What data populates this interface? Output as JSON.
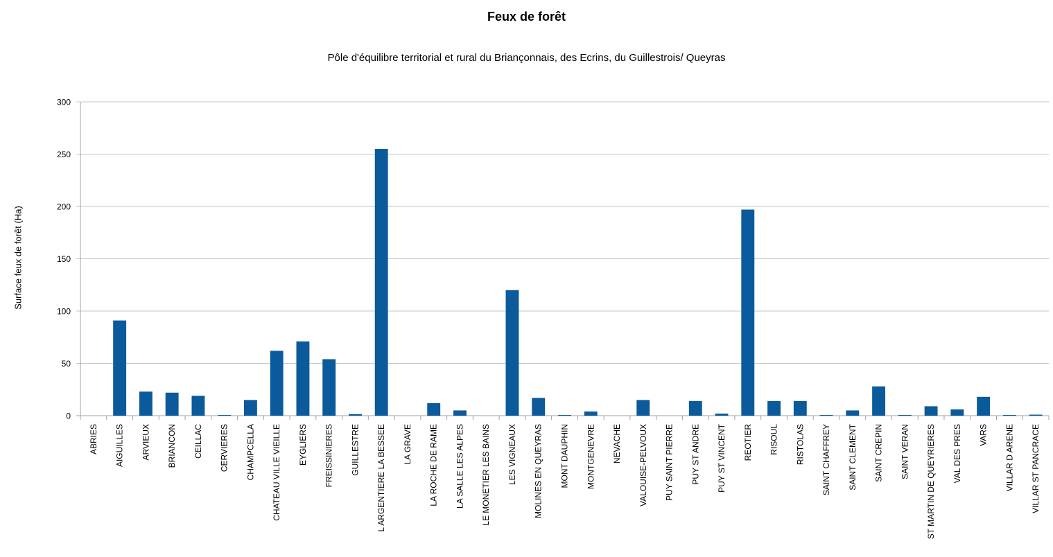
{
  "chart_data": {
    "type": "bar",
    "title": "Feux de forêt",
    "subtitle": "Pôle d'équilibre territorial et rural du Briançonnais, des Ecrins, du Guillestrois/ Queyras",
    "ylabel": "Surface feux de forêt (Ha)",
    "xlabel": "",
    "ylim": [
      0,
      300
    ],
    "yticks": [
      0,
      50,
      100,
      150,
      200,
      250,
      300
    ],
    "grid": true,
    "legend": "none",
    "bar_color": "#0a5a9c",
    "categories": [
      "ABRIES",
      "AIGUILLES",
      "ARVIEUX",
      "BRIANCON",
      "CEILLAC",
      "CERVIERES",
      "CHAMPCELLA",
      "CHATEAU VILLE VIEILLE",
      "EYGLIERS",
      "FREISSINIERES",
      "GUILLESTRE",
      "L ARGENTIERE LA BESSEE",
      "LA GRAVE",
      "LA ROCHE DE RAME",
      "LA SALLE LES ALPES",
      "LE MONETIER LES BAINS",
      "LES VIGNEAUX",
      "MOLINES EN QUEYRAS",
      "MONT DAUPHIN",
      "MONTGENEVRE",
      "NEVACHE",
      "VALOUISE-PELVOUX",
      "PUY SAINT PIERRE",
      "PUY ST ANDRE",
      "PUY ST VINCENT",
      "REOTIER",
      "RISOUL",
      "RISTOLAS",
      "SAINT CHAFFREY",
      "SAINT CLEMENT",
      "SAINT CREPIN",
      "SAINT VERAN",
      "ST MARTIN DE QUEYRIERES",
      "VAL DES PRES",
      "VARS",
      "VILLAR D ARENE",
      "VILLAR ST PANCRACE"
    ],
    "values": [
      0,
      91,
      23,
      22,
      19,
      0.5,
      15,
      62,
      71,
      54,
      1.5,
      255,
      0,
      12,
      5,
      0,
      120,
      17,
      0.5,
      4,
      0,
      15,
      0,
      14,
      2,
      197,
      14,
      14,
      0.3,
      5,
      28,
      0.3,
      9,
      6,
      18,
      0.5,
      1
    ]
  }
}
